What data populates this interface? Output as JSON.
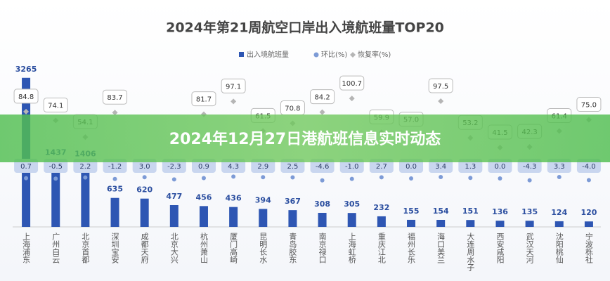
{
  "chart_data": {
    "type": "bar",
    "title": "2024年第21周航空口岸出入境航班量TOP20",
    "banner": "2024年12月27日港航班信息实时动态",
    "categories": [
      "上海浦东",
      "广州白云",
      "北京首都",
      "深圳宝安",
      "成都天府",
      "北京大兴",
      "杭州萧山",
      "厦门高崎",
      "昆明长水",
      "青岛胶东",
      "南京禄口",
      "上海虹桥",
      "重庆江北",
      "福州长乐",
      "海口美兰",
      "大连周水子",
      "西安咸阳",
      "武汉天河",
      "沈阳桃仙",
      "宁波栎社"
    ],
    "series": [
      {
        "name": "出入境航班量",
        "color": "#2e56b3",
        "values": [
          3265,
          1437,
          1406,
          635,
          620,
          477,
          456,
          436,
          394,
          367,
          308,
          305,
          232,
          155,
          154,
          151,
          136,
          135,
          124,
          120
        ]
      },
      {
        "name": "环比(%)",
        "color": "#7d9bd6",
        "values": [
          0.7,
          -0.5,
          2.2,
          -1.2,
          3.0,
          -2.3,
          0.9,
          4.3,
          2.9,
          2.5,
          -4.6,
          -1.0,
          2.7,
          0.0,
          3.4,
          1.3,
          0.0,
          -4.3,
          3.3,
          -4.0
        ],
        "value_labels": [
          "0.7",
          "-0.5",
          "2.2",
          "-1.2",
          "3.0",
          "-2.3",
          "0.9",
          "4.3",
          "2.9",
          "2.5",
          "-4.6",
          "-1.0",
          "2.7",
          "0.0",
          "3.4",
          "1.3",
          "0.0",
          "-4.3",
          "3.3",
          "-4.0"
        ]
      },
      {
        "name": "恢复率(%)",
        "color": "#b5b5b5",
        "values": [
          84.8,
          74.1,
          54.1,
          83.7,
          null,
          null,
          81.7,
          97.1,
          61.5,
          70.8,
          84.2,
          100.7,
          59.9,
          57.0,
          97.5,
          53.2,
          41.5,
          42.3,
          61.4,
          75.0
        ],
        "value_labels": [
          "84.8",
          "74.1",
          "54.1",
          "83.7",
          null,
          null,
          "81.7",
          "97.1",
          "61.5",
          "70.8",
          "84.2",
          "100.7",
          "59.9",
          "57.0",
          "97.5",
          "53.2",
          "41.5",
          "42.3",
          "61.4",
          "75.0"
        ]
      }
    ]
  }
}
